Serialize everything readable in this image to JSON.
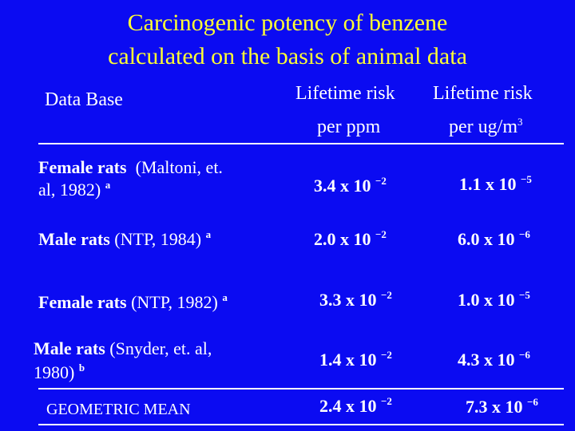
{
  "title": {
    "line1": "Carcinogenic potency of benzene",
    "line2": "calculated on the basis of animal data"
  },
  "columns": {
    "data_base": "Data Base",
    "col1": {
      "line1": "Lifetime risk",
      "line2": "per ppm"
    },
    "col2": {
      "line1": "Lifetime risk",
      "line2": "per ug/m",
      "line2_sup": "3"
    }
  },
  "rows": [
    {
      "bold": "Female rats",
      "ref": "(Maltoni, et.",
      "ref2": "al, 1982)",
      "note": "a",
      "v1": "3.4 x 10",
      "e1": "−2",
      "v2": "1.1 x 10",
      "e2": "−5"
    },
    {
      "bold": "Male rats",
      "ref": "(NTP, 1984)",
      "note": "a",
      "v1": "2.0 x 10",
      "e1": "−2",
      "v2": "6.0 x 10",
      "e2": "−6"
    },
    {
      "bold": "Female rats",
      "ref": "(NTP, 1982)",
      "note": "a",
      "v1": "3.3 x 10",
      "e1": "−2",
      "v2": "1.0 x 10",
      "e2": "−5"
    },
    {
      "bold": "Male rats",
      "ref": "(Snyder, et. al,",
      "ref2": "1980)",
      "note": "b",
      "v1": "1.4 x 10",
      "e1": "−2",
      "v2": "4.3 x 10",
      "e2": "−6"
    }
  ],
  "geometric_mean": {
    "label": "GEOMETRIC MEAN",
    "v1": "2.4 x 10",
    "e1": "−2",
    "v2": "7.3 x 10",
    "e2": "−6"
  }
}
